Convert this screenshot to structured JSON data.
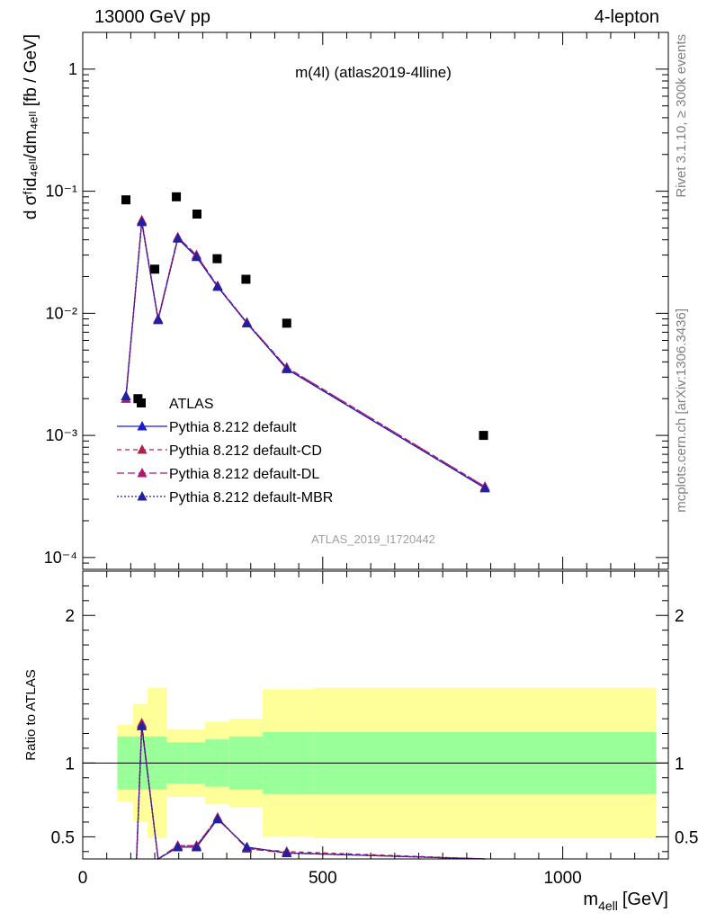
{
  "header": {
    "left": "13000 GeV pp",
    "right": "4-lepton"
  },
  "side": {
    "rivet": "Rivet 3.1.10, ≥ 300k events",
    "mcplots": "mcplots.cern.ch [arXiv:1306.3436]"
  },
  "chart_data": {
    "type": "line",
    "title": "m(4l) (atlas2019-4lline)",
    "watermark": "ATLAS_2019_I1720442",
    "xlabel_main": "m",
    "xlabel_sub": "4ell",
    "xlabel_unit": "[GeV]",
    "ylabel_top": "d σᶠid₄ₑₗₗ/dm₄ₑₗₗ [fb / GeV]",
    "ylabel_bottom": "Ratio to ATLAS",
    "xlim": [
      0,
      1220
    ],
    "x_ticks": [
      "0",
      "500",
      "1000"
    ],
    "main_scale": "log",
    "main_ylim": [
      8e-05,
      2
    ],
    "main_y_ticks": [
      "10⁻⁴",
      "10⁻³",
      "10⁻²",
      "10⁻¹",
      "1"
    ],
    "ratio_ylim": [
      0.35,
      2.3
    ],
    "ratio_y_ticks": [
      "0.5",
      "1",
      "2"
    ],
    "legend": [
      "ATLAS",
      "Pythia 8.212 default",
      "Pythia 8.212 default-CD",
      "Pythia 8.212 default-DL",
      "Pythia 8.212 default-MBR"
    ],
    "colors": {
      "default": "#1a1ad9",
      "cd": "#b0204a",
      "dl": "#b01870",
      "mbr": "#2020a0",
      "data": "#000000",
      "band_inner": "#99ff99",
      "band_outer": "#ffff99"
    },
    "data": {
      "name": "ATLAS",
      "x": [
        90,
        115,
        150,
        195,
        238,
        280,
        340,
        425,
        835
      ],
      "y": [
        0.085,
        0.002,
        0.023,
        0.09,
        0.065,
        0.028,
        0.019,
        0.0083,
        0.001
      ]
    },
    "series": [
      {
        "name": "Pythia 8.212 default",
        "x": [
          90,
          123,
          157,
          198,
          237,
          281,
          342,
          425,
          838
        ],
        "y": [
          0.0021,
          0.056,
          0.0088,
          0.041,
          0.029,
          0.0165,
          0.0083,
          0.0035,
          0.00037
        ]
      },
      {
        "name": "Pythia 8.212 default-CD",
        "x": [
          90,
          123,
          157,
          198,
          237,
          281,
          342,
          425,
          838
        ],
        "y": [
          0.002,
          0.058,
          0.009,
          0.042,
          0.03,
          0.0168,
          0.0084,
          0.0036,
          0.00038
        ]
      },
      {
        "name": "Pythia 8.212 default-DL",
        "x": [
          90,
          123,
          157,
          198,
          237,
          281,
          342,
          425,
          838
        ],
        "y": [
          0.002,
          0.057,
          0.009,
          0.042,
          0.03,
          0.0167,
          0.0084,
          0.0036,
          0.00038
        ]
      },
      {
        "name": "Pythia 8.212 default-MBR",
        "x": [
          90,
          123,
          157,
          198,
          237,
          281,
          342,
          425,
          838
        ],
        "y": [
          0.0021,
          0.056,
          0.0089,
          0.041,
          0.029,
          0.0166,
          0.0083,
          0.0035,
          0.00037
        ]
      }
    ],
    "ratio": {
      "x": [
        112,
        123,
        157,
        198,
        237,
        281,
        342,
        425,
        838
      ],
      "default": [
        0.1,
        1.25,
        0.3,
        0.43,
        0.43,
        0.62,
        0.43,
        0.39,
        0.34
      ],
      "cd": [
        0.1,
        1.27,
        0.3,
        0.44,
        0.44,
        0.63,
        0.42,
        0.4,
        0.34
      ],
      "dl": [
        0.1,
        1.26,
        0.3,
        0.44,
        0.44,
        0.63,
        0.42,
        0.39,
        0.34
      ],
      "mbr": [
        0.1,
        1.25,
        0.3,
        0.43,
        0.43,
        0.62,
        0.43,
        0.39,
        0.34
      ],
      "bins": [
        {
          "x0": 72,
          "x1": 105,
          "inner": [
            0.82,
            1.18
          ],
          "outer": [
            0.74,
            1.26
          ]
        },
        {
          "x0": 105,
          "x1": 135,
          "inner": [
            0.82,
            1.18
          ],
          "outer": [
            0.6,
            1.4
          ]
        },
        {
          "x0": 135,
          "x1": 175,
          "inner": [
            0.82,
            1.18
          ],
          "outer": [
            0.49,
            1.51
          ]
        },
        {
          "x0": 175,
          "x1": 215,
          "inner": [
            0.86,
            1.14
          ],
          "outer": [
            0.77,
            1.23
          ]
        },
        {
          "x0": 215,
          "x1": 255,
          "inner": [
            0.86,
            1.14
          ],
          "outer": [
            0.77,
            1.23
          ]
        },
        {
          "x0": 255,
          "x1": 305,
          "inner": [
            0.84,
            1.16
          ],
          "outer": [
            0.72,
            1.28
          ]
        },
        {
          "x0": 305,
          "x1": 375,
          "inner": [
            0.82,
            1.18
          ],
          "outer": [
            0.7,
            1.3
          ]
        },
        {
          "x0": 375,
          "x1": 480,
          "inner": [
            0.79,
            1.21
          ],
          "outer": [
            0.5,
            1.5
          ]
        },
        {
          "x0": 480,
          "x1": 1195,
          "inner": [
            0.79,
            1.21
          ],
          "outer": [
            0.49,
            1.51
          ]
        }
      ]
    }
  }
}
